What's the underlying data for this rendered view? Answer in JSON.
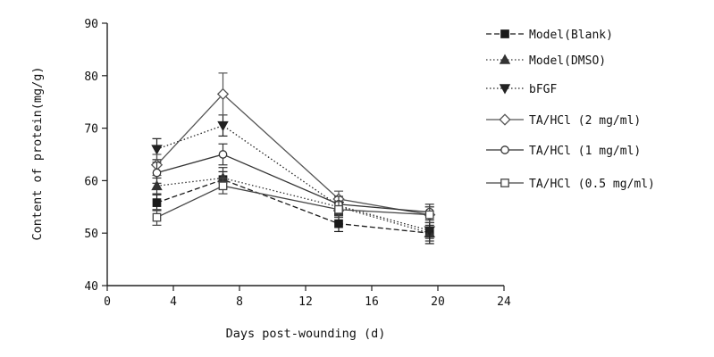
{
  "chart_data": {
    "type": "line",
    "xlabel": "Days post-wounding (d)",
    "ylabel": "Content of protein(mg/g)",
    "xlim": [
      0,
      24
    ],
    "ylim": [
      40,
      90
    ],
    "xticks": [
      "0",
      "4",
      "8",
      "12",
      "16",
      "20",
      "24"
    ],
    "yticks": [
      "40",
      "50",
      "60",
      "70",
      "80",
      "90"
    ],
    "grid": false,
    "legend_position": "right",
    "x": [
      3,
      7,
      14,
      19.5
    ],
    "series": [
      {
        "name": "Model(Blank)",
        "marker": "square-filled",
        "dash": "dashed",
        "values": [
          55.8,
          60.2,
          51.8,
          50.0
        ],
        "errors": [
          1.5,
          1.5,
          1.5,
          2.0
        ]
      },
      {
        "name": "Model(DMSO)",
        "marker": "triangle-up-filled",
        "dash": "dotted",
        "values": [
          59.0,
          60.5,
          55.0,
          50.0
        ],
        "errors": [
          1.5,
          2.0,
          1.5,
          1.5
        ]
      },
      {
        "name": "bFGF",
        "marker": "triangle-down-filled",
        "dash": "dotted",
        "values": [
          66.0,
          70.5,
          55.2,
          50.5
        ],
        "errors": [
          2.0,
          2.0,
          1.5,
          1.5
        ]
      },
      {
        "name": "TA/HCl  (2 mg/ml)",
        "marker": "diamond-open",
        "dash": "solid",
        "values": [
          63.0,
          76.5,
          56.5,
          53.5
        ],
        "errors": [
          2.0,
          4.0,
          1.5,
          1.5
        ]
      },
      {
        "name": "TA/HCl  (1 mg/ml)",
        "marker": "circle-open",
        "dash": "solid",
        "values": [
          61.5,
          65.0,
          55.5,
          54.0
        ],
        "errors": [
          2.0,
          2.0,
          1.5,
          1.5
        ]
      },
      {
        "name": "TA/HCl  (0.5 mg/ml)",
        "marker": "square-open",
        "dash": "solid",
        "values": [
          53.0,
          59.0,
          54.5,
          53.5
        ],
        "errors": [
          1.5,
          1.5,
          1.5,
          1.5
        ]
      }
    ]
  }
}
